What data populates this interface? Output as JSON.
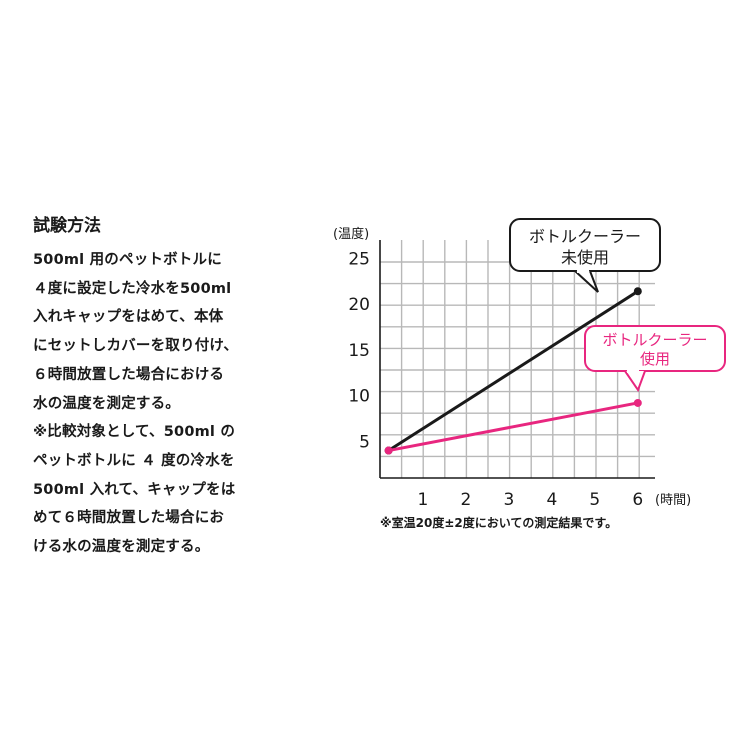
{
  "method": {
    "title": "試験方法",
    "lines": [
      "500ml 用のペットボトルに",
      "４度に設定した冷水を500ml",
      "入れキャップをはめて、本体",
      "にセットしカバーを取り付け、",
      "６時間放置した場合における",
      "水の温度を測定する。",
      "※比較対象として、500ml の",
      "ペットボトルに ４ 度の冷水を",
      "500ml 入れて、キャップをは",
      "めて６時間放置した場合にお",
      "ける水の温度を測定する。"
    ]
  },
  "note": "※室温20度±2度においての測定結果です。",
  "chart_data": {
    "type": "line",
    "ylabel": "(温度)",
    "xlabel": "(時間)",
    "x_ticks": [
      "1",
      "2",
      "3",
      "4",
      "5",
      "6"
    ],
    "y_ticks": [
      "5",
      "10",
      "15",
      "20",
      "25"
    ],
    "xlim": [
      0,
      6.4
    ],
    "ylim": [
      1,
      27
    ],
    "grid": true,
    "series": [
      {
        "name": "ボトルクーラー未使用",
        "callout_lines": [
          "ボトルクーラー",
          "未使用"
        ],
        "color": "#1a1a1a",
        "points": [
          [
            0.2,
            4
          ],
          [
            6,
            21.4
          ]
        ]
      },
      {
        "name": "ボトルクーラー使用",
        "callout_lines": [
          "ボトルクーラー",
          "使用"
        ],
        "color": "#e8267f",
        "points": [
          [
            0.2,
            4
          ],
          [
            6,
            9.2
          ]
        ]
      }
    ]
  }
}
